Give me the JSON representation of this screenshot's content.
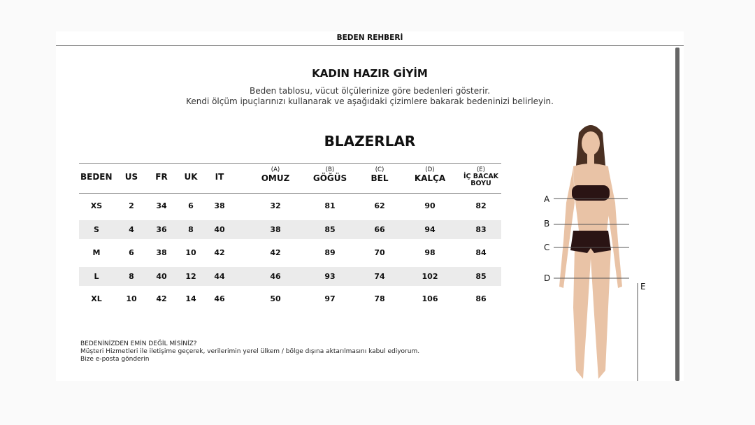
{
  "header": {
    "title": "BEDEN REHBERİ"
  },
  "intro": {
    "title": "KADIN HAZIR GİYİM",
    "line1": "Beden tablosu, vücut ölçülerinize göre bedenleri gösterir.",
    "line2": "Kendi ölçüm ipuçlarınızı kullanarak ve aşağıdaki çizimlere bakarak bedeninizi belirleyin."
  },
  "section": {
    "title": "BLAZERLAR"
  },
  "table": {
    "columns": [
      {
        "letter": "",
        "label": "BEDEN"
      },
      {
        "letter": "",
        "label": "US"
      },
      {
        "letter": "",
        "label": "FR"
      },
      {
        "letter": "",
        "label": "UK"
      },
      {
        "letter": "",
        "label": "IT"
      },
      {
        "letter": "(A)",
        "label": "OMUZ"
      },
      {
        "letter": "(B)",
        "label": "GÖĞÜS"
      },
      {
        "letter": "(C)",
        "label": "BEL"
      },
      {
        "letter": "(D)",
        "label": "KALÇA"
      },
      {
        "letter": "(E)",
        "label": "İÇ BACAK BOYU"
      }
    ],
    "rows": [
      [
        "XS",
        "2",
        "34",
        "6",
        "38",
        "32",
        "81",
        "62",
        "90",
        "82"
      ],
      [
        "S",
        "4",
        "36",
        "8",
        "40",
        "38",
        "85",
        "66",
        "94",
        "83"
      ],
      [
        "M",
        "6",
        "38",
        "10",
        "42",
        "42",
        "89",
        "70",
        "98",
        "84"
      ],
      [
        "L",
        "8",
        "40",
        "12",
        "44",
        "46",
        "93",
        "74",
        "102",
        "85"
      ],
      [
        "XL",
        "10",
        "42",
        "14",
        "46",
        "50",
        "97",
        "78",
        "106",
        "86"
      ]
    ]
  },
  "footer": {
    "question": "BEDENİNİZDEN EMİN DEĞİL MİSİNİZ?",
    "consent": "Müşteri Hizmetleri ile iletişime geçerek, verilerimin yerel ülkem / bölge dışına aktarılmasını kabul ediyorum.",
    "email_link": "Bize e-posta gönderin"
  },
  "figure": {
    "labels": [
      "A",
      "B",
      "C",
      "D",
      "E"
    ],
    "skin": "#e9c3a6",
    "underwear": "#2a1414",
    "hair": "#4a3022"
  }
}
